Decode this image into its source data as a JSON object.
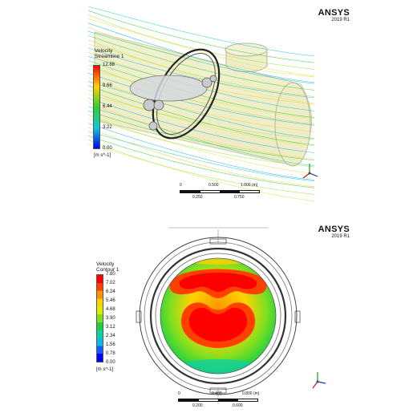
{
  "top_panel": {
    "brand": "ANSYS",
    "version": "2019 R1",
    "legend_title": [
      "Velocity",
      "Streamline 1"
    ],
    "legend_ticks": [
      "12.88",
      "9.66",
      "6.44",
      "3.22",
      "0.00"
    ],
    "legend_unit": "[m s^-1]",
    "legend_colors": [
      "#ff0000",
      "#ffd200",
      "#2fd12f",
      "#10c8d8",
      "#0000ff"
    ],
    "scale_top_labels": [
      "0",
      "0.500",
      "1.000 (m)"
    ],
    "scale_bottom_labels": [
      "0.250",
      "0.750"
    ]
  },
  "bottom_panel": {
    "brand": "ANSYS",
    "version": "2019 R1",
    "legend_title": [
      "Velocity",
      "Contour 1"
    ],
    "legend_ticks": [
      "7.80",
      "7.02",
      "6.24",
      "5.46",
      "4.68",
      "3.90",
      "3.12",
      "2.34",
      "1.56",
      "0.78",
      "0.00"
    ],
    "legend_unit": "[m s^-1]",
    "legend_colors": [
      "#ff0000",
      "#ff4000",
      "#ff9000",
      "#ffd200",
      "#d8f000",
      "#80e020",
      "#20d040",
      "#10d0a0",
      "#10b8e8",
      "#1060ff",
      "#0000ff"
    ],
    "scale_top_labels": [
      "0",
      "0.400",
      "0.800 (m)"
    ],
    "scale_bottom_labels": [
      "0.200",
      "0.600"
    ]
  }
}
